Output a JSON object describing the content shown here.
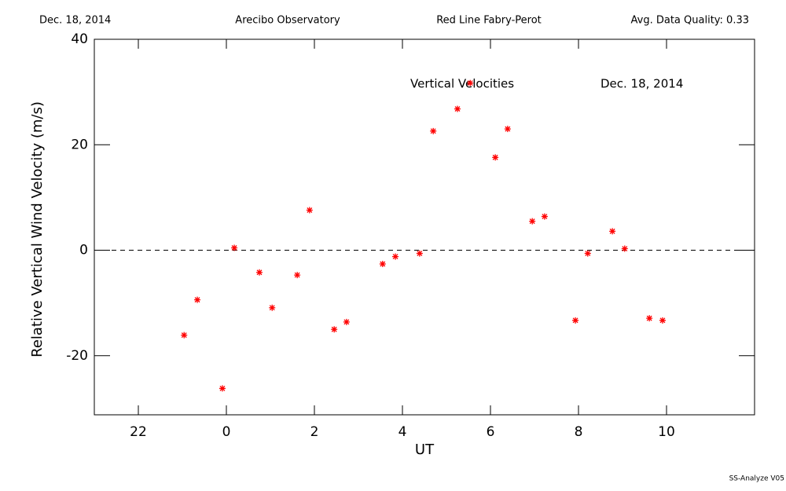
{
  "header": {
    "left": "Dec. 18, 2014",
    "center_left": "Arecibo Observatory",
    "center_right": "Red Line Fabry-Perot",
    "right": "Avg. Data Quality: 0.33"
  },
  "chart_data": {
    "type": "scatter",
    "annotations": [
      "Vertical Velocities",
      "Dec. 18, 2014"
    ],
    "x_label": "UT",
    "y_label": "Relative Vertical Wind Velocity (m/s)",
    "xlim": [
      -3,
      12
    ],
    "ylim": [
      -31.2,
      40
    ],
    "xticks": [
      {
        "value": -2,
        "label": "22"
      },
      0,
      2,
      4,
      6,
      8,
      10
    ],
    "yticks": [
      -20,
      0,
      20,
      40
    ],
    "zero_line": true,
    "color": "#ff0000",
    "x": [
      -0.96,
      -0.66,
      -0.09,
      0.18,
      0.75,
      1.04,
      1.61,
      1.89,
      2.45,
      2.73,
      3.55,
      3.84,
      4.39,
      4.7,
      5.25,
      5.54,
      6.11,
      6.39,
      6.95,
      7.23,
      7.93,
      8.21,
      8.77,
      9.05,
      9.61,
      9.91
    ],
    "values": [
      -16.1,
      -9.4,
      -26.2,
      0.45,
      -4.2,
      -10.9,
      -4.7,
      7.6,
      -15.0,
      -13.6,
      -2.6,
      -1.2,
      -0.6,
      22.6,
      26.8,
      31.7,
      17.6,
      23.0,
      5.5,
      6.4,
      -13.3,
      -0.6,
      3.6,
      0.3,
      -12.9,
      -13.3
    ]
  },
  "footer": "SS-Analyze V05"
}
